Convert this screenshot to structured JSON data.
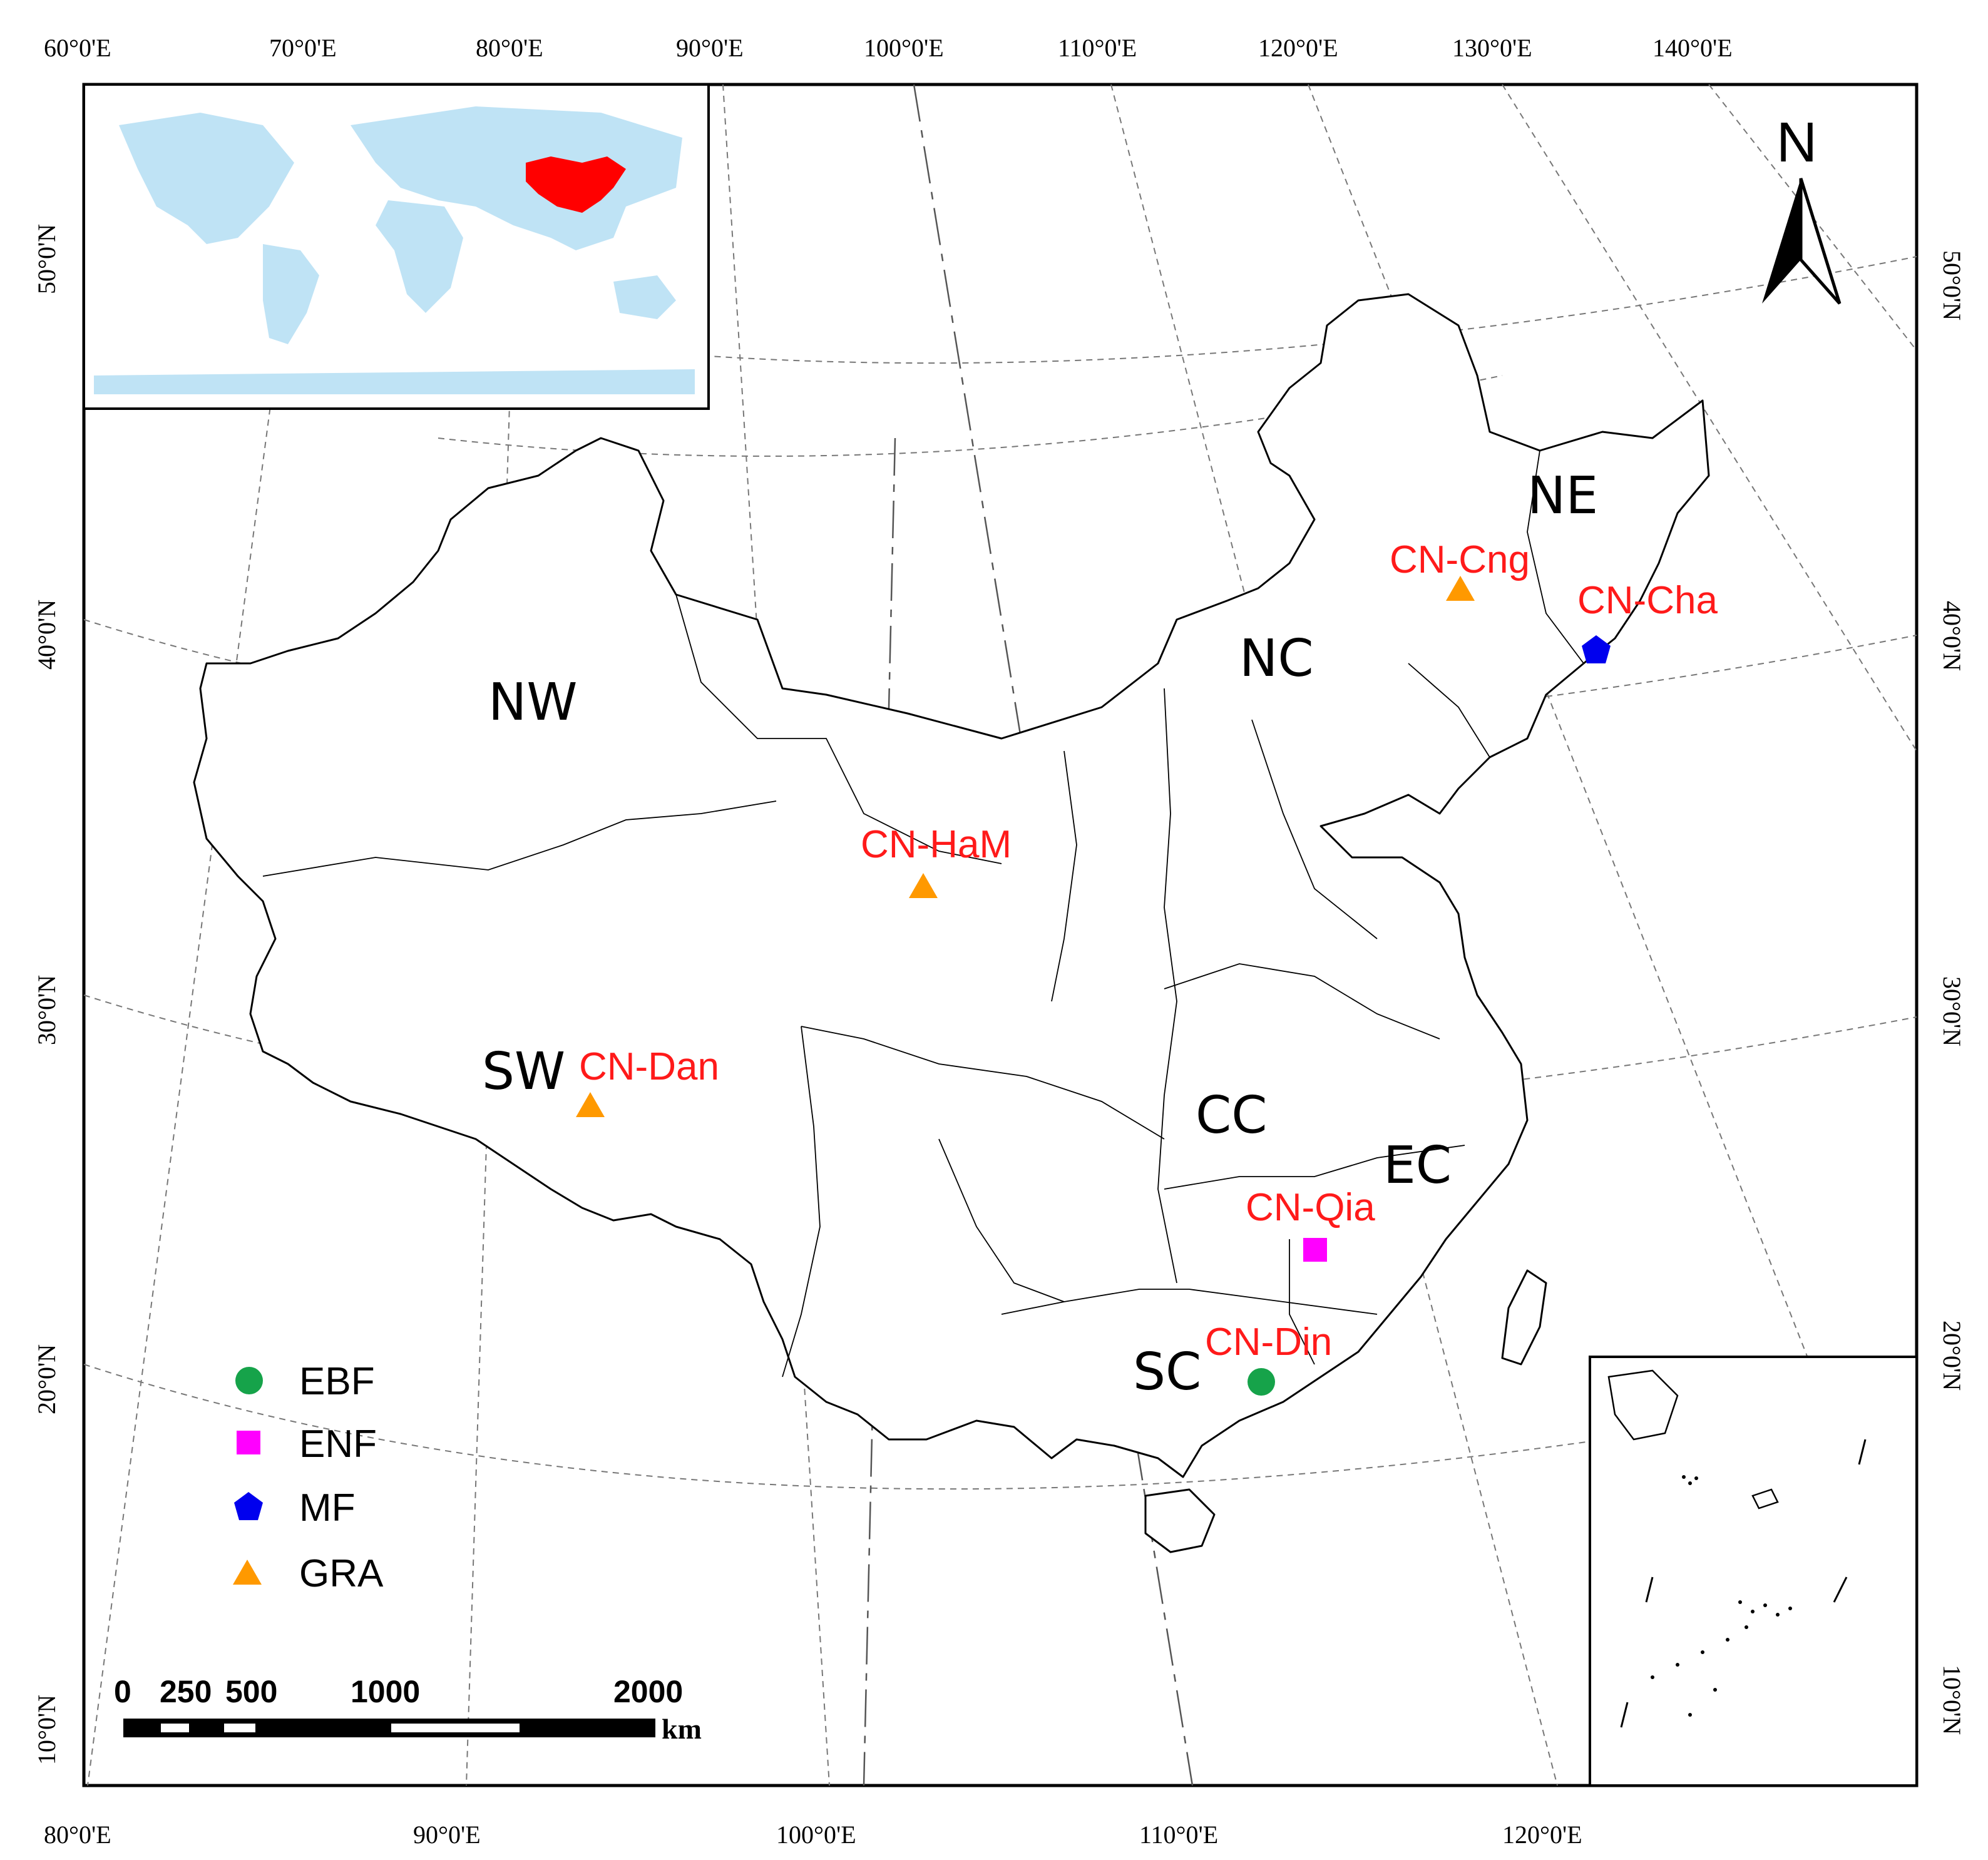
{
  "colors": {
    "ebf": "#16a34a",
    "enf": "#ff00ff",
    "mf": "#0000ee",
    "gra": "#ff9900",
    "site_label": "#ff1a1a",
    "world_land": "#bfe3f5",
    "china_highlight": "#ff0000"
  },
  "top_axis": {
    "ticks": [
      "60°0'E",
      "70°0'E",
      "80°0'E",
      "90°0'E",
      "100°0'E",
      "110°0'E",
      "120°0'E",
      "130°0'E",
      "140°0'E"
    ]
  },
  "bottom_axis": {
    "ticks": [
      "80°0'E",
      "90°0'E",
      "100°0'E",
      "110°0'E",
      "120°0'E"
    ]
  },
  "left_axis": {
    "ticks": [
      "50°0'N",
      "40°0'N",
      "30°0'N",
      "20°0'N",
      "10°0'N"
    ]
  },
  "right_axis": {
    "ticks": [
      "50°0'N",
      "40°0'N",
      "30°0'N",
      "20°0'N",
      "10°0'N"
    ]
  },
  "regions": [
    {
      "id": "nw",
      "label": "NW"
    },
    {
      "id": "nc",
      "label": "NC"
    },
    {
      "id": "ne",
      "label": "NE"
    },
    {
      "id": "sw",
      "label": "SW"
    },
    {
      "id": "cc",
      "label": "CC"
    },
    {
      "id": "ec",
      "label": "EC"
    },
    {
      "id": "sc",
      "label": "SC"
    }
  ],
  "sites": [
    {
      "id": "cng",
      "label": "CN-Cng",
      "type": "GRA"
    },
    {
      "id": "cha",
      "label": "CN-Cha",
      "type": "MF"
    },
    {
      "id": "ham",
      "label": "CN-HaM",
      "type": "GRA"
    },
    {
      "id": "dan",
      "label": "CN-Dan",
      "type": "GRA"
    },
    {
      "id": "qia",
      "label": "CN-Qia",
      "type": "ENF"
    },
    {
      "id": "din",
      "label": "CN-Din",
      "type": "EBF"
    }
  ],
  "legend": [
    {
      "label": "EBF",
      "symbol": "circle"
    },
    {
      "label": "ENF",
      "symbol": "square"
    },
    {
      "label": "MF",
      "symbol": "pentagon"
    },
    {
      "label": "GRA",
      "symbol": "triangle"
    }
  ],
  "scale_bar": {
    "labels": [
      "0",
      "250",
      "500",
      "1000",
      "2000"
    ],
    "unit": "km"
  },
  "north_arrow": {
    "label": "N"
  }
}
